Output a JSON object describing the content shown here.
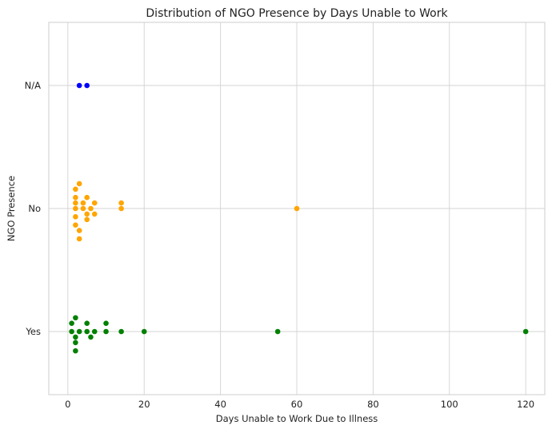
{
  "chart_data": {
    "type": "scatter",
    "title": "Distribution of NGO Presence by Days Unable to Work",
    "xlabel": "Days Unable to Work Due to Illness",
    "ylabel": "NGO Presence",
    "xlim": [
      -5,
      125
    ],
    "x_ticks": [
      "0",
      "20",
      "40",
      "60",
      "80",
      "100",
      "120"
    ],
    "categories": [
      "N/A",
      "No",
      "Yes"
    ],
    "grid": true,
    "series": [
      {
        "category": "N/A",
        "color": "#0000ff",
        "values": [
          3,
          5
        ]
      },
      {
        "category": "No",
        "color": "#ffa500",
        "values": [
          2,
          2,
          2,
          2,
          2,
          2,
          3,
          3,
          3,
          4,
          4,
          5,
          5,
          5,
          6,
          7,
          7,
          14,
          14,
          60
        ]
      },
      {
        "category": "Yes",
        "color": "#008000",
        "values": [
          1,
          1,
          2,
          2,
          2,
          2,
          3,
          5,
          5,
          6,
          7,
          10,
          10,
          14,
          20,
          55,
          120
        ]
      }
    ]
  }
}
